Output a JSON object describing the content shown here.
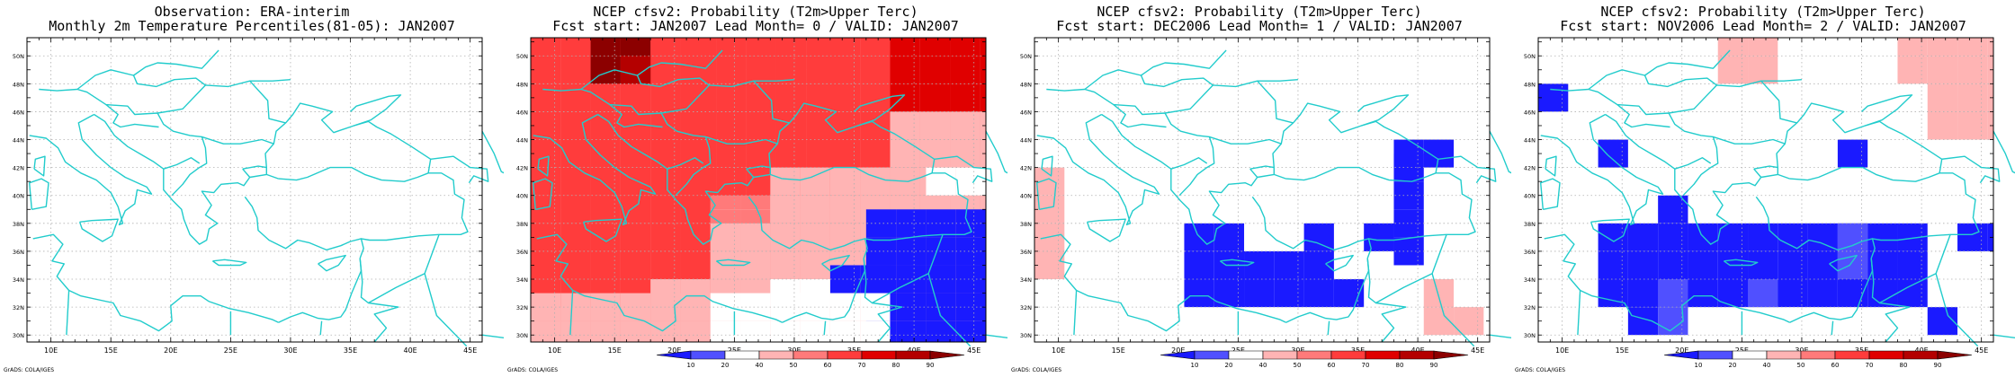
{
  "credit": "GrADS: COLA/IGES",
  "lon_labels": [
    "10E",
    "15E",
    "20E",
    "25E",
    "30E",
    "35E",
    "40E",
    "45E"
  ],
  "lat_labels": [
    "30N",
    "32N",
    "34N",
    "36N",
    "38N",
    "40N",
    "42N",
    "44N",
    "46N",
    "48N",
    "50N"
  ],
  "colorbar": {
    "ticks": [
      "10",
      "20",
      "40",
      "50",
      "60",
      "70",
      "80",
      "90"
    ],
    "colors": [
      "#1a1aff",
      "#5050ff",
      "#ffffff",
      "#ffb4b4",
      "#ff7a7a",
      "#ff3c3c",
      "#e00000",
      "#b40000",
      "#8c0000"
    ]
  },
  "panels": [
    {
      "title1": "Observation: ERA-interim",
      "title2": "Monthly 2m Temperature Percentiles(81-05): JAN2007",
      "show_colorbar": false
    },
    {
      "title1": "NCEP cfsv2: Probability (T2m>Upper Terc)",
      "title2": "Fcst start: JAN2007  Lead Month= 0 / VALID: JAN2007",
      "show_colorbar": true
    },
    {
      "title1": "NCEP cfsv2: Probability (T2m>Upper Terc)",
      "title2": "Fcst start: DEC2006  Lead Month= 1 / VALID: JAN2007",
      "show_colorbar": true
    },
    {
      "title1": "NCEP cfsv2: Probability (T2m>Upper Terc)",
      "title2": "Fcst start: NOV2006  Lead Month= 2 / VALID: JAN2007",
      "show_colorbar": true
    }
  ]
}
